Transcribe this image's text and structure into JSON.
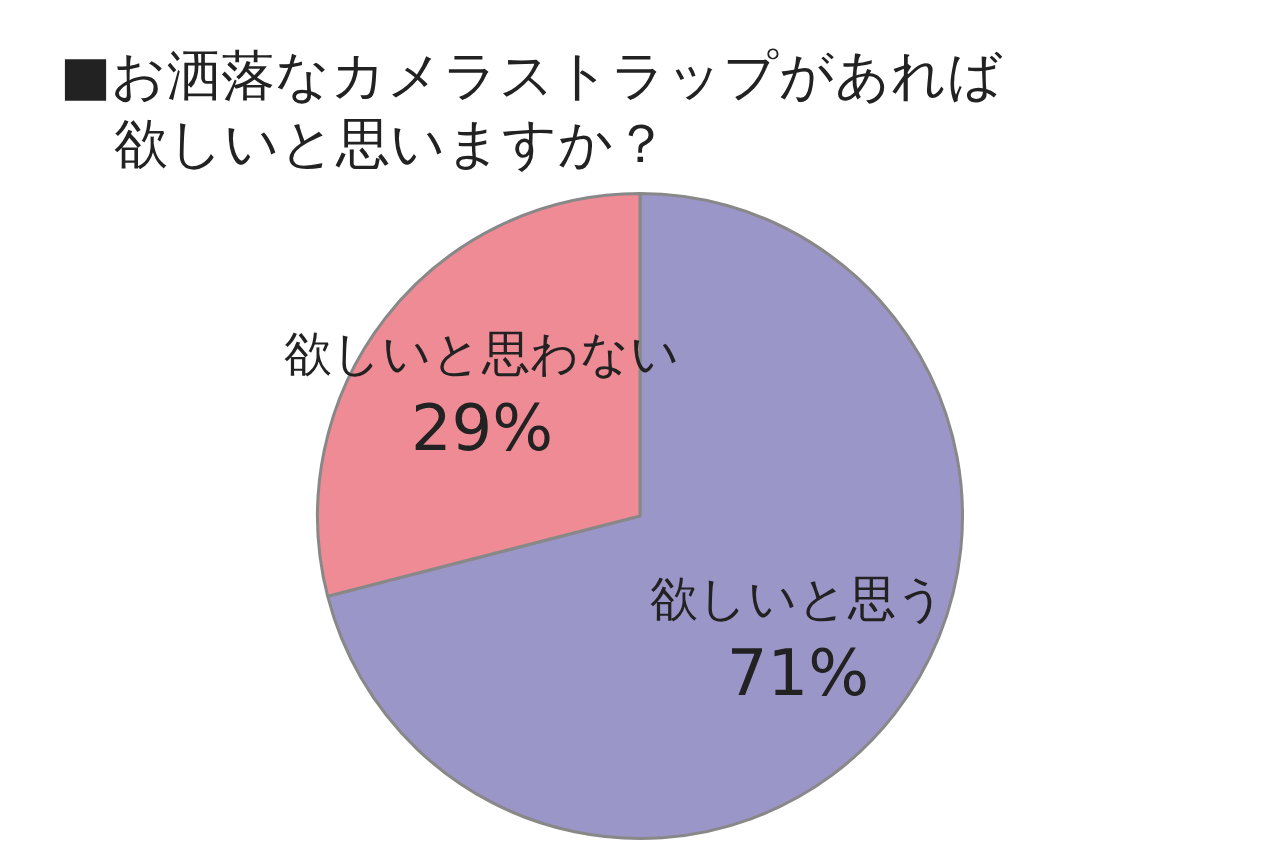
{
  "chart_data": {
    "type": "pie",
    "title": "■お洒落なカメラストラップがあれば欲しいと思いますか？",
    "categories": [
      "欲しいと思う",
      "欲しいと思わない"
    ],
    "values": [
      71,
      29
    ],
    "colors": [
      "#9b96c8",
      "#ee8b95"
    ],
    "value_labels": [
      "71%",
      "29%"
    ],
    "legend": false
  }
}
